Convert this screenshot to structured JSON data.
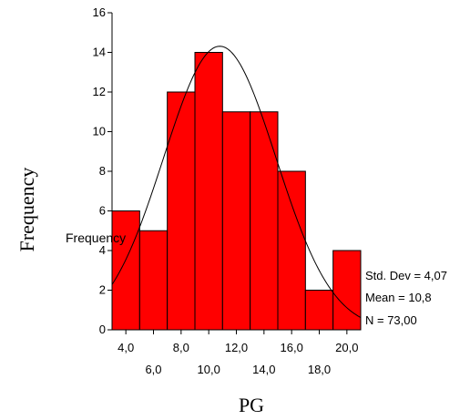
{
  "chart_data": {
    "type": "bar",
    "subtype": "histogram",
    "xlabel": "PG",
    "ylabel": "Frequency",
    "artifact_label": "Frequency",
    "bins": [
      {
        "from": 3,
        "to": 5,
        "value": 6
      },
      {
        "from": 5,
        "to": 7,
        "value": 5
      },
      {
        "from": 7,
        "to": 9,
        "value": 12
      },
      {
        "from": 9,
        "to": 11,
        "value": 14
      },
      {
        "from": 11,
        "to": 13,
        "value": 11
      },
      {
        "from": 13,
        "to": 15,
        "value": 11
      },
      {
        "from": 15,
        "to": 17,
        "value": 8
      },
      {
        "from": 17,
        "to": 19,
        "value": 2
      },
      {
        "from": 19,
        "to": 21,
        "value": 4
      }
    ],
    "ylim": [
      0,
      16
    ],
    "xlim": [
      3,
      21
    ],
    "y_ticks": [
      {
        "value": 0,
        "label": "0"
      },
      {
        "value": 2,
        "label": "2"
      },
      {
        "value": 4,
        "label": "4"
      },
      {
        "value": 6,
        "label": "6"
      },
      {
        "value": 8,
        "label": "8"
      },
      {
        "value": 10,
        "label": "10"
      },
      {
        "value": 12,
        "label": "12"
      },
      {
        "value": 14,
        "label": "14"
      },
      {
        "value": 16,
        "label": "16"
      }
    ],
    "x_ticks_upper": [
      {
        "value": 4,
        "label": "4,0"
      },
      {
        "value": 8,
        "label": "8,0"
      },
      {
        "value": 12,
        "label": "12,0"
      },
      {
        "value": 16,
        "label": "16,0"
      },
      {
        "value": 20,
        "label": "20,0"
      }
    ],
    "x_ticks_lower": [
      {
        "value": 6,
        "label": "6,0"
      },
      {
        "value": 10,
        "label": "10,0"
      },
      {
        "value": 14,
        "label": "14,0"
      },
      {
        "value": 18,
        "label": "18,0"
      }
    ],
    "normal_curve": {
      "mean": 10.8,
      "std": 4.07,
      "n": 73,
      "bin_width": 2
    },
    "stats": {
      "std": "Std. Dev = 4,07",
      "mean": "Mean = 10,8",
      "n": "N = 73,00"
    },
    "bar_color": "#ff0000",
    "bar_edge_color": "#000000",
    "grid": false
  }
}
